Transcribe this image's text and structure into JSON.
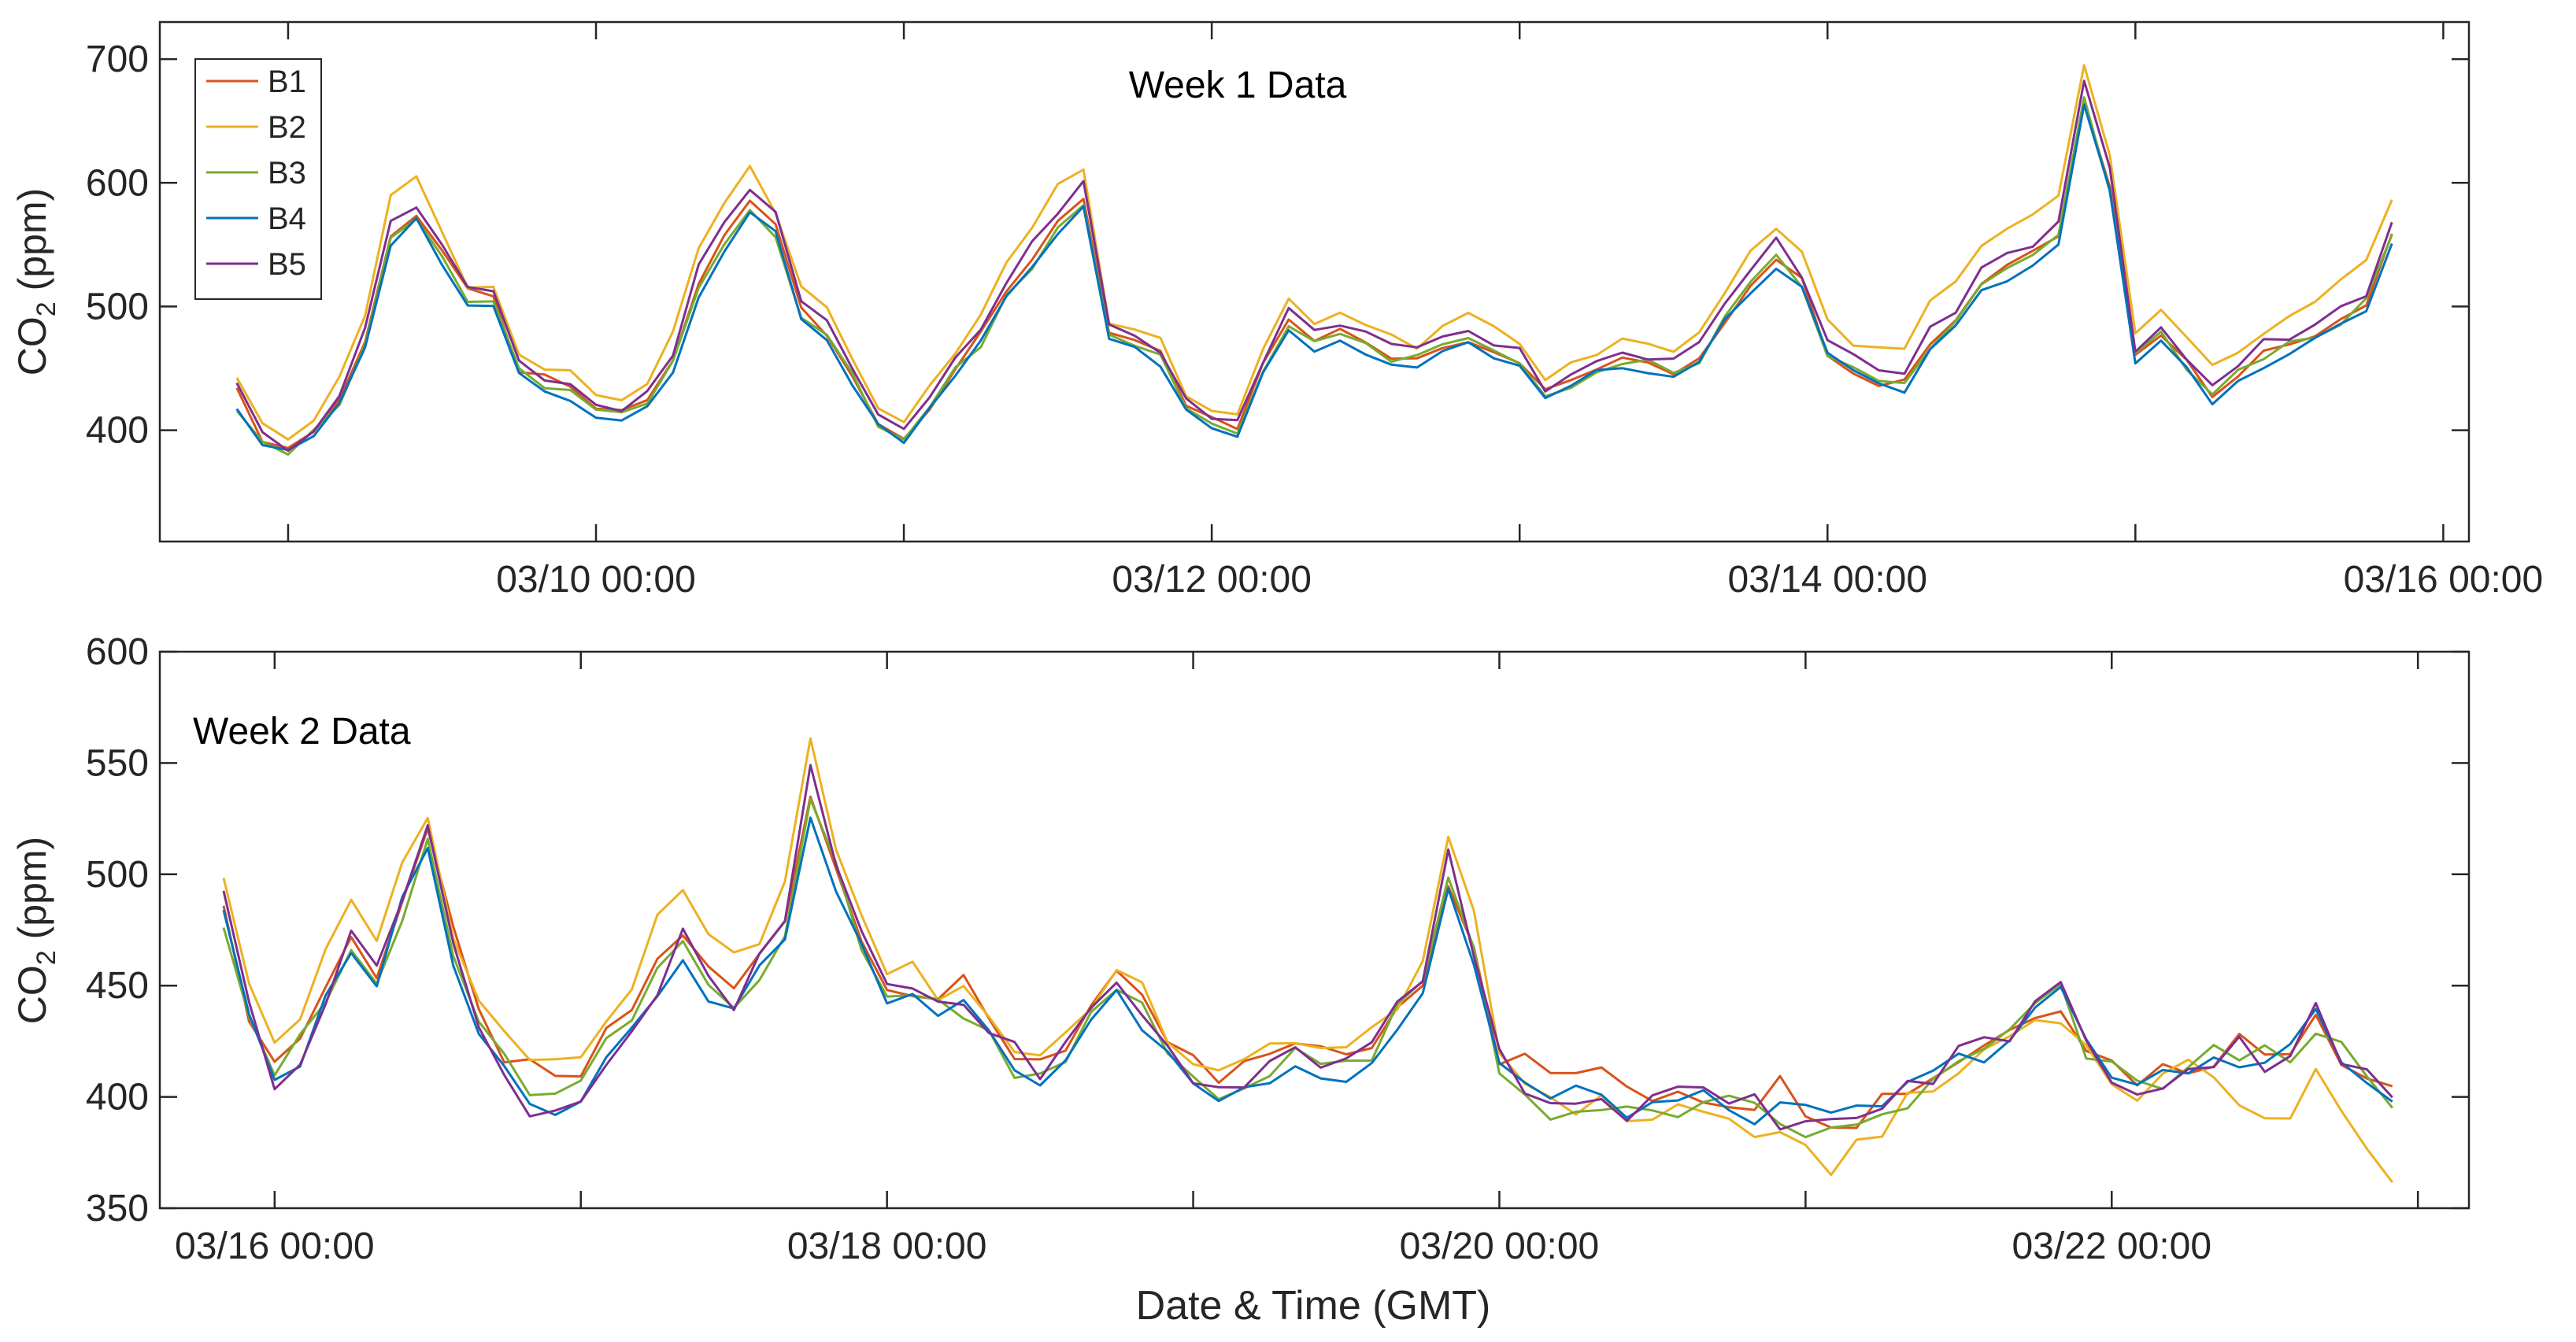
{
  "figure": {
    "xlabel": "Date & Time (GMT)"
  },
  "chart_data": [
    {
      "type": "line",
      "annotation": "Week 1 Data",
      "ylabel_main": "CO",
      "ylabel_sub": "2",
      "ylabel_rest": " (ppm)",
      "ylim": [
        310,
        730
      ],
      "yticks": [
        400,
        500,
        600,
        700
      ],
      "ytick_labels": [
        "400",
        "500",
        "600",
        "700"
      ],
      "xlim_hours": [
        -154,
        26
      ],
      "xticks_hours": [
        -144,
        -120,
        -96,
        -72,
        -48,
        -24,
        0,
        24
      ],
      "xtick_labels": [
        "03/10 00:00",
        "03/12 00:00",
        "03/14 00:00",
        "03/16 00:00"
      ],
      "xtick_label_hours": [
        -120,
        -72,
        -24,
        24
      ],
      "x_hours": [
        -148,
        -146,
        -144,
        -142,
        -140,
        -138,
        -136,
        -134,
        -132,
        -130,
        -128,
        -126,
        -124,
        -122,
        -120,
        -118,
        -116,
        -114,
        -112,
        -110,
        -108,
        -106,
        -104,
        -102,
        -100,
        -98,
        -96,
        -94,
        -92,
        -90,
        -88,
        -86,
        -84,
        -82,
        -80,
        -78,
        -76,
        -74,
        -72,
        -70,
        -68,
        -66,
        -64,
        -62,
        -60,
        -58,
        -56,
        -54,
        -52,
        -50,
        -48,
        -46,
        -44,
        -42,
        -40,
        -38,
        -36,
        -34,
        -32,
        -30,
        -28,
        -26,
        -24,
        -22,
        -20,
        -18,
        -16,
        -14,
        -12,
        -10,
        -8,
        -6,
        -4,
        -2,
        0,
        2,
        4,
        6,
        8,
        10,
        12,
        14,
        16,
        18,
        20
      ],
      "series": [
        {
          "name": "B1",
          "color": "#D95319",
          "values": [
            430,
            395,
            385,
            400,
            425,
            470,
            560,
            575,
            545,
            510,
            505,
            450,
            440,
            432,
            418,
            412,
            425,
            455,
            520,
            555,
            585,
            565,
            500,
            480,
            445,
            405,
            398,
            420,
            450,
            475,
            510,
            540,
            570,
            590,
            478,
            468,
            460,
            420,
            408,
            400,
            450,
            490,
            475,
            480,
            468,
            460,
            458,
            470,
            475,
            465,
            458,
            430,
            440,
            450,
            455,
            455,
            448,
            460,
            490,
            520,
            542,
            520,
            465,
            450,
            440,
            440,
            472,
            490,
            520,
            535,
            545,
            560,
            670,
            600,
            460,
            480,
            455,
            430,
            448,
            462,
            470,
            480,
            492,
            505,
            560
          ]
        },
        {
          "name": "B2",
          "color": "#EDB120",
          "values": [
            440,
            405,
            393,
            410,
            440,
            490,
            590,
            605,
            560,
            520,
            515,
            460,
            450,
            445,
            430,
            425,
            440,
            475,
            545,
            580,
            610,
            580,
            515,
            495,
            460,
            415,
            410,
            432,
            465,
            495,
            535,
            565,
            600,
            610,
            490,
            480,
            470,
            430,
            418,
            410,
            462,
            505,
            490,
            495,
            482,
            475,
            470,
            485,
            490,
            480,
            470,
            442,
            455,
            465,
            470,
            472,
            465,
            478,
            510,
            545,
            565,
            540,
            485,
            472,
            465,
            470,
            500,
            520,
            550,
            562,
            575,
            590,
            700,
            620,
            480,
            500,
            472,
            448,
            465,
            482,
            492,
            505,
            520,
            535,
            585
          ]
        },
        {
          "name": "B3",
          "color": "#77AC30",
          "values": [
            420,
            392,
            382,
            396,
            420,
            468,
            555,
            570,
            540,
            505,
            500,
            447,
            437,
            430,
            415,
            410,
            422,
            452,
            515,
            550,
            578,
            560,
            495,
            478,
            442,
            402,
            396,
            418,
            448,
            472,
            508,
            535,
            565,
            585,
            475,
            466,
            458,
            418,
            406,
            398,
            448,
            488,
            472,
            478,
            466,
            458,
            456,
            468,
            472,
            463,
            455,
            428,
            438,
            448,
            452,
            453,
            445,
            457,
            488,
            516,
            538,
            516,
            462,
            448,
            438,
            438,
            468,
            486,
            515,
            530,
            540,
            555,
            665,
            595,
            458,
            478,
            452,
            428,
            445,
            460,
            468,
            478,
            490,
            502,
            555
          ]
        },
        {
          "name": "B4",
          "color": "#0072BD",
          "values": [
            418,
            390,
            380,
            394,
            418,
            465,
            553,
            568,
            538,
            503,
            498,
            445,
            435,
            428,
            413,
            408,
            420,
            450,
            512,
            548,
            575,
            558,
            493,
            476,
            440,
            400,
            394,
            415,
            445,
            470,
            505,
            532,
            562,
            582,
            472,
            463,
            455,
            415,
            403,
            396,
            445,
            485,
            468,
            475,
            462,
            455,
            452,
            465,
            470,
            460,
            452,
            425,
            435,
            445,
            448,
            450,
            442,
            455,
            485,
            512,
            535,
            512,
            458,
            445,
            435,
            432,
            462,
            482,
            510,
            525,
            535,
            550,
            660,
            590,
            455,
            472,
            448,
            422,
            440,
            455,
            462,
            472,
            485,
            498,
            550
          ]
        },
        {
          "name": "B5",
          "color": "#7E2F8E",
          "values": [
            435,
            398,
            388,
            403,
            430,
            478,
            570,
            585,
            550,
            515,
            510,
            455,
            445,
            438,
            422,
            418,
            432,
            462,
            530,
            565,
            595,
            572,
            505,
            486,
            450,
            408,
            402,
            426,
            458,
            484,
            520,
            548,
            580,
            598,
            484,
            474,
            465,
            425,
            412,
            405,
            455,
            498,
            483,
            488,
            476,
            468,
            465,
            478,
            483,
            472,
            464,
            436,
            447,
            458,
            462,
            462,
            456,
            468,
            498,
            530,
            552,
            528,
            472,
            458,
            448,
            448,
            480,
            498,
            528,
            542,
            552,
            568,
            680,
            610,
            466,
            486,
            460,
            436,
            455,
            470,
            478,
            488,
            500,
            512,
            565
          ]
        }
      ],
      "legend": {
        "position": "top-left",
        "entries": [
          "B1",
          "B2",
          "B3",
          "B4",
          "B5"
        ]
      }
    },
    {
      "type": "line",
      "annotation": "Week 2 Data",
      "ylabel_main": "CO",
      "ylabel_sub": "2",
      "ylabel_rest": " (ppm)",
      "ylim": [
        350,
        600
      ],
      "yticks": [
        350,
        400,
        450,
        500,
        550,
        600
      ],
      "ytick_labels": [
        "350",
        "400",
        "450",
        "500",
        "550",
        "600"
      ],
      "xlim_hours": [
        -9,
        172
      ],
      "xticks_hours": [
        0,
        24,
        48,
        72,
        96,
        120,
        144,
        168
      ],
      "xtick_labels": [
        "03/16 00:00",
        "03/18 00:00",
        "03/20 00:00",
        "03/22 00:00"
      ],
      "xtick_label_hours": [
        0,
        48,
        96,
        144
      ],
      "x_hours": [
        -4,
        -2,
        0,
        2,
        4,
        6,
        8,
        10,
        12,
        14,
        16,
        18,
        20,
        22,
        24,
        26,
        28,
        30,
        32,
        34,
        36,
        38,
        40,
        42,
        44,
        46,
        48,
        50,
        52,
        54,
        56,
        58,
        60,
        62,
        64,
        66,
        68,
        70,
        72,
        74,
        76,
        78,
        80,
        82,
        84,
        86,
        88,
        90,
        92,
        94,
        96,
        98,
        100,
        102,
        104,
        106,
        108,
        110,
        112,
        114,
        116,
        118,
        120,
        122,
        124,
        126,
        128,
        130,
        132,
        134,
        136,
        138,
        140,
        142,
        144,
        146,
        148,
        150,
        152,
        154,
        156,
        158,
        160,
        162,
        164,
        166
      ],
      "series": [
        {
          "name": "B1",
          "color": "#D95319",
          "values": [
            480,
            440,
            415,
            428,
            450,
            470,
            458,
            490,
            520,
            470,
            435,
            420,
            410,
            405,
            410,
            425,
            440,
            460,
            475,
            455,
            448,
            462,
            480,
            540,
            505,
            470,
            455,
            450,
            445,
            448,
            432,
            420,
            418,
            425,
            440,
            450,
            440,
            425,
            415,
            405,
            410,
            420,
            428,
            420,
            415,
            425,
            440,
            455,
            500,
            470,
            420,
            415,
            410,
            412,
            408,
            405,
            402,
            405,
            402,
            400,
            400,
            405,
            398,
            392,
            392,
            400,
            405,
            410,
            418,
            425,
            430,
            440,
            445,
            425,
            415,
            410,
            412,
            415,
            420,
            425,
            420,
            425,
            440,
            420,
            410,
            405
          ]
        },
        {
          "name": "B2",
          "color": "#EDB120",
          "values": [
            495,
            450,
            425,
            438,
            462,
            485,
            470,
            505,
            525,
            478,
            442,
            428,
            418,
            412,
            420,
            435,
            452,
            475,
            490,
            468,
            460,
            475,
            495,
            555,
            515,
            478,
            460,
            455,
            448,
            452,
            435,
            422,
            420,
            428,
            445,
            455,
            445,
            428,
            418,
            408,
            412,
            422,
            430,
            422,
            418,
            428,
            445,
            462,
            510,
            478,
            420,
            408,
            400,
            398,
            395,
            392,
            392,
            395,
            392,
            390,
            385,
            378,
            372,
            370,
            378,
            388,
            395,
            402,
            412,
            420,
            428,
            435,
            440,
            420,
            408,
            402,
            406,
            410,
            412,
            402,
            390,
            392,
            410,
            390,
            375,
            360
          ]
        },
        {
          "name": "B3",
          "color": "#77AC30",
          "values": [
            482,
            438,
            412,
            422,
            442,
            465,
            450,
            478,
            515,
            465,
            428,
            415,
            405,
            398,
            405,
            420,
            435,
            452,
            470,
            450,
            440,
            458,
            478,
            535,
            500,
            465,
            450,
            445,
            440,
            442,
            428,
            415,
            412,
            420,
            435,
            445,
            438,
            420,
            410,
            400,
            405,
            415,
            422,
            415,
            410,
            420,
            435,
            450,
            495,
            465,
            412,
            402,
            395,
            395,
            392,
            390,
            392,
            395,
            392,
            395,
            392,
            388,
            385,
            382,
            385,
            392,
            398,
            405,
            412,
            420,
            428,
            438,
            445,
            420,
            410,
            405,
            408,
            412,
            418,
            420,
            418,
            420,
            435,
            418,
            405,
            395
          ]
        },
        {
          "name": "B4",
          "color": "#0072BD",
          "values": [
            485,
            440,
            402,
            412,
            440,
            462,
            455,
            485,
            518,
            462,
            425,
            412,
            402,
            398,
            402,
            418,
            432,
            450,
            468,
            448,
            438,
            455,
            475,
            530,
            498,
            462,
            448,
            442,
            438,
            440,
            425,
            412,
            410,
            418,
            432,
            442,
            435,
            418,
            408,
            400,
            402,
            412,
            420,
            412,
            408,
            418,
            432,
            448,
            492,
            462,
            415,
            405,
            398,
            400,
            398,
            396,
            396,
            398,
            396,
            396,
            394,
            392,
            390,
            388,
            392,
            398,
            402,
            408,
            415,
            422,
            428,
            440,
            445,
            420,
            410,
            405,
            408,
            412,
            418,
            420,
            416,
            420,
            438,
            418,
            405,
            392
          ]
        },
        {
          "name": "B5",
          "color": "#7E2F8E",
          "values": [
            488,
            442,
            410,
            420,
            445,
            468,
            460,
            495,
            522,
            468,
            428,
            408,
            398,
            395,
            400,
            418,
            430,
            448,
            470,
            450,
            440,
            458,
            480,
            545,
            505,
            468,
            452,
            448,
            442,
            445,
            430,
            418,
            415,
            420,
            438,
            448,
            440,
            422,
            410,
            400,
            405,
            415,
            425,
            418,
            412,
            422,
            440,
            455,
            515,
            468,
            418,
            408,
            400,
            400,
            398,
            396,
            398,
            400,
            398,
            398,
            396,
            392,
            388,
            385,
            390,
            398,
            402,
            410,
            418,
            425,
            430,
            442,
            448,
            422,
            410,
            405,
            408,
            412,
            418,
            422,
            418,
            422,
            442,
            420,
            408,
            395
          ]
        }
      ]
    }
  ]
}
